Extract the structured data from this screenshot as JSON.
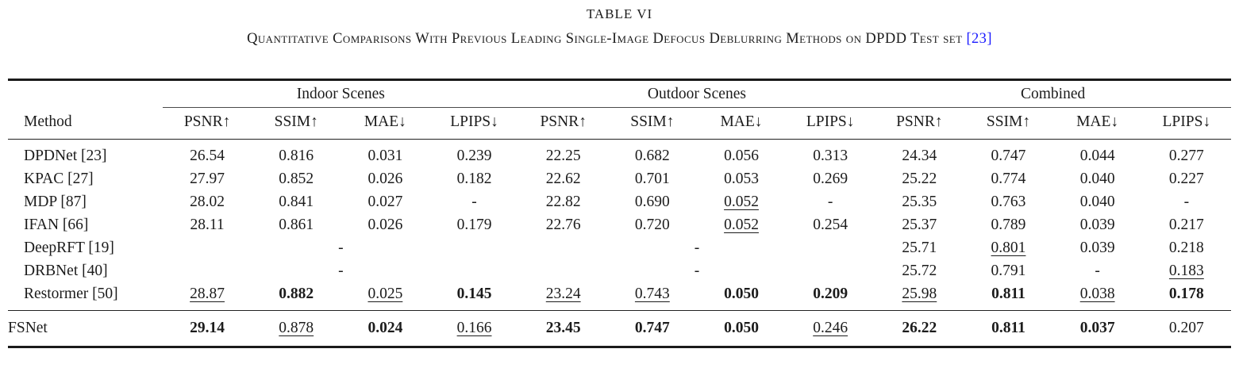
{
  "caption": {
    "label": "TABLE VI",
    "title": "Quantitative Comparisons With Previous Leading Single-Image Defocus Deblurring Methods on DPDD Test set",
    "citation": "[23]"
  },
  "colors": {
    "citation_link": "#1a1aff",
    "text": "#1c1c1c",
    "rule": "#1a1a1a"
  },
  "table": {
    "method_header": "Method",
    "groups": [
      "Indoor Scenes",
      "Outdoor Scenes",
      "Combined"
    ],
    "metrics": [
      "PSNR↑",
      "SSIM↑",
      "MAE↓",
      "LPIPS↓"
    ],
    "rows": [
      {
        "method": "DPDNet [23]",
        "cells": [
          {
            "v": "26.54"
          },
          {
            "v": "0.816"
          },
          {
            "v": "0.031"
          },
          {
            "v": "0.239"
          },
          {
            "v": "22.25"
          },
          {
            "v": "0.682"
          },
          {
            "v": "0.056"
          },
          {
            "v": "0.313"
          },
          {
            "v": "24.34"
          },
          {
            "v": "0.747"
          },
          {
            "v": "0.044"
          },
          {
            "v": "0.277"
          }
        ]
      },
      {
        "method": "KPAC [27]",
        "cells": [
          {
            "v": "27.97"
          },
          {
            "v": "0.852"
          },
          {
            "v": "0.026"
          },
          {
            "v": "0.182"
          },
          {
            "v": "22.62"
          },
          {
            "v": "0.701"
          },
          {
            "v": "0.053"
          },
          {
            "v": "0.269"
          },
          {
            "v": "25.22"
          },
          {
            "v": "0.774"
          },
          {
            "v": "0.040"
          },
          {
            "v": "0.227"
          }
        ]
      },
      {
        "method": "MDP [87]",
        "cells": [
          {
            "v": "28.02"
          },
          {
            "v": "0.841"
          },
          {
            "v": "0.027"
          },
          {
            "v": "-"
          },
          {
            "v": "22.82"
          },
          {
            "v": "0.690"
          },
          {
            "v": "0.052",
            "s": "u"
          },
          {
            "v": "-"
          },
          {
            "v": "25.35"
          },
          {
            "v": "0.763"
          },
          {
            "v": "0.040"
          },
          {
            "v": "-"
          }
        ]
      },
      {
        "method": "IFAN [66]",
        "cells": [
          {
            "v": "28.11"
          },
          {
            "v": "0.861"
          },
          {
            "v": "0.026"
          },
          {
            "v": "0.179"
          },
          {
            "v": "22.76"
          },
          {
            "v": "0.720"
          },
          {
            "v": "0.052",
            "s": "u"
          },
          {
            "v": "0.254"
          },
          {
            "v": "25.37"
          },
          {
            "v": "0.789"
          },
          {
            "v": "0.039"
          },
          {
            "v": "0.217"
          }
        ]
      },
      {
        "method": "DeepRFT [19]",
        "cells": [
          {
            "v": "-",
            "span": 4
          },
          {
            "v": "-",
            "span": 4
          },
          {
            "v": "25.71"
          },
          {
            "v": "0.801",
            "s": "u"
          },
          {
            "v": "0.039"
          },
          {
            "v": "0.218"
          }
        ]
      },
      {
        "method": "DRBNet [40]",
        "cells": [
          {
            "v": "-",
            "span": 4
          },
          {
            "v": "-",
            "span": 4
          },
          {
            "v": "25.72"
          },
          {
            "v": "0.791"
          },
          {
            "v": "-"
          },
          {
            "v": "0.183",
            "s": "u"
          }
        ]
      },
      {
        "method": "Restormer [50]",
        "cells": [
          {
            "v": "28.87",
            "s": "u"
          },
          {
            "v": "0.882",
            "s": "b"
          },
          {
            "v": "0.025",
            "s": "u"
          },
          {
            "v": "0.145",
            "s": "b"
          },
          {
            "v": "23.24",
            "s": "u"
          },
          {
            "v": "0.743",
            "s": "u"
          },
          {
            "v": "0.050",
            "s": "b"
          },
          {
            "v": "0.209",
            "s": "b"
          },
          {
            "v": "25.98",
            "s": "u"
          },
          {
            "v": "0.811",
            "s": "b"
          },
          {
            "v": "0.038",
            "s": "u"
          },
          {
            "v": "0.178",
            "s": "b"
          }
        ]
      }
    ],
    "footer_rows": [
      {
        "method": "FSNet",
        "cells": [
          {
            "v": "29.14",
            "s": "b"
          },
          {
            "v": "0.878",
            "s": "u"
          },
          {
            "v": "0.024",
            "s": "b"
          },
          {
            "v": "0.166",
            "s": "u"
          },
          {
            "v": "23.45",
            "s": "b"
          },
          {
            "v": "0.747",
            "s": "b"
          },
          {
            "v": "0.050",
            "s": "b"
          },
          {
            "v": "0.246",
            "s": "u"
          },
          {
            "v": "26.22",
            "s": "b"
          },
          {
            "v": "0.811",
            "s": "b"
          },
          {
            "v": "0.037",
            "s": "b"
          },
          {
            "v": "0.207"
          }
        ]
      }
    ]
  }
}
